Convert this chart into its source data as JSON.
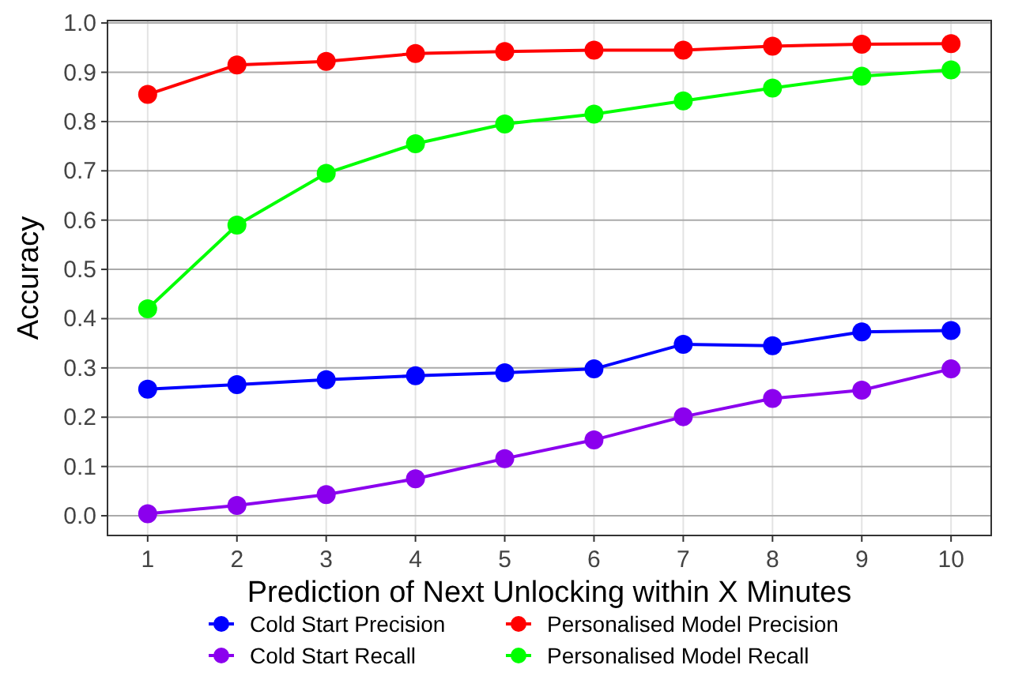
{
  "chart_data": {
    "type": "line",
    "xlabel": "Prediction of Next Unlocking within X Minutes",
    "ylabel": "Accuracy",
    "x": [
      1,
      2,
      3,
      4,
      5,
      6,
      7,
      8,
      9,
      10
    ],
    "xlim": [
      0.55,
      10.45
    ],
    "xticks": [
      1,
      2,
      3,
      4,
      5,
      6,
      7,
      8,
      9,
      10
    ],
    "ylim": [
      -0.04,
      1.005
    ],
    "yticks": [
      {
        "value": 0,
        "label": "0.0"
      },
      0.1,
      0.2,
      0.3,
      0.4,
      0.5,
      0.6,
      0.7,
      0.8,
      0.9,
      {
        "value": 1,
        "label": "1.0"
      }
    ],
    "grid": true,
    "legend": "bottom",
    "marker": "circle",
    "line_style": "solid",
    "series": [
      {
        "name": "Cold Start Precision",
        "color": "#0000ff",
        "values": [
          0.257,
          0.266,
          0.276,
          0.284,
          0.29,
          0.298,
          0.348,
          0.345,
          0.373,
          0.376
        ]
      },
      {
        "name": "Cold Start Recall",
        "color": "#8b00ee",
        "values": [
          0.004,
          0.021,
          0.043,
          0.075,
          0.116,
          0.154,
          0.201,
          0.238,
          0.255,
          0.298
        ]
      },
      {
        "name": "Personalised Model Precision",
        "color": "#ff0000",
        "values": [
          0.855,
          0.915,
          0.922,
          0.938,
          0.942,
          0.945,
          0.945,
          0.953,
          0.957,
          0.958
        ]
      },
      {
        "name": "Personalised Model Recall",
        "color": "#00ff00",
        "values": [
          0.42,
          0.59,
          0.695,
          0.755,
          0.795,
          0.815,
          0.842,
          0.868,
          0.892,
          0.905
        ]
      }
    ]
  }
}
